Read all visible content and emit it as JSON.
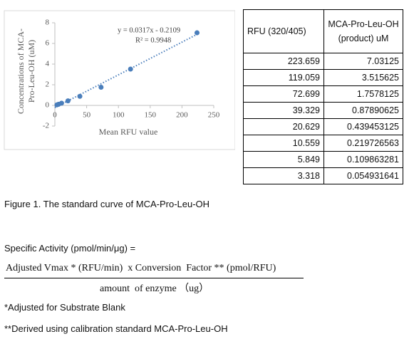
{
  "chart_data": {
    "type": "scatter",
    "x_label": "Mean RFU value",
    "y_label": [
      "Concentrations of MCA-",
      "Pro-Leu-OH (uM)"
    ],
    "x": [
      223.659,
      119.059,
      72.699,
      39.329,
      20.629,
      10.559,
      5.849,
      3.318
    ],
    "values": [
      7.03125,
      3.515625,
      1.7578125,
      0.87890625,
      0.439453125,
      0.219726563,
      0.109863281,
      0.054931641
    ],
    "color": "#4a7ebb",
    "xlim": [
      0,
      250
    ],
    "xticks": [
      0,
      50,
      100,
      150,
      200,
      250
    ],
    "ylim": [
      -2,
      8
    ],
    "yticks": [
      -2,
      0,
      2,
      4,
      6,
      8
    ],
    "trendline": {
      "slope": 0.0317,
      "intercept": -0.2109,
      "label": "y = 0.0317x - 0.2109",
      "r2_label": "R² = 0.9948"
    }
  },
  "table": {
    "header": [
      "RFU (320/405)",
      "MCA-Pro-Leu-OH (product) uM"
    ],
    "rows": [
      [
        "223.659",
        "7.03125"
      ],
      [
        "119.059",
        "3.515625"
      ],
      [
        "72.699",
        "1.7578125"
      ],
      [
        "39.329",
        "0.87890625"
      ],
      [
        "20.629",
        "0.439453125"
      ],
      [
        "10.559",
        "0.219726563"
      ],
      [
        "5.849",
        "0.109863281"
      ],
      [
        "3.318",
        "0.054931641"
      ]
    ]
  },
  "caption": "Figure 1. The standard curve of MCA-Pro-Leu-OH",
  "formula": {
    "intro": "Specific Activity (pmol/min/μg) =",
    "numerator": "Adjusted Vmax * (RFU/min)  x Conversion  Factor ** (pmol/RFU)",
    "denominator": "amount  of enzyme （ug）"
  },
  "notes": [
    "*Adjusted for Substrate Blank",
    "**Derived using calibration standard MCA-Pro-Leu-OH"
  ]
}
